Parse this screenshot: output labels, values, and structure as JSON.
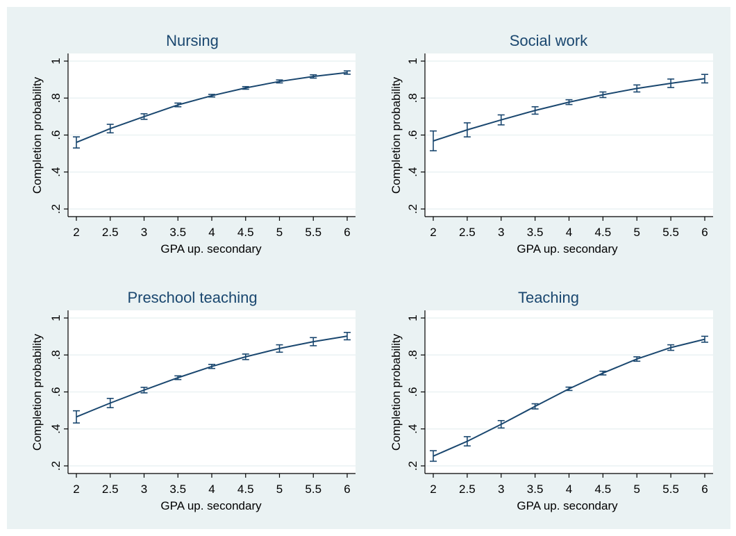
{
  "colors": {
    "background": "#ffffff",
    "figure_fill": "#eaf2f3",
    "plot_fill": "#ffffff",
    "gridline": "#eaf2f3",
    "series": "#1a476f"
  },
  "chart_data": [
    {
      "type": "line",
      "title": "Nursing",
      "xlabel": "GPA up. secondary",
      "ylabel": "Completion probability",
      "xlim": [
        2,
        6
      ],
      "ylim": [
        0.2,
        1
      ],
      "x_ticks": [
        2,
        2.5,
        3,
        3.5,
        4,
        4.5,
        5,
        5.5,
        6
      ],
      "x_tick_labels": [
        "2",
        "2.5",
        "3",
        "3.5",
        "4",
        "4.5",
        "5",
        "5.5",
        "6"
      ],
      "y_ticks": [
        0.2,
        0.4,
        0.6,
        0.8,
        1
      ],
      "y_tick_labels": [
        ".2",
        ".4",
        ".6",
        ".8",
        "1"
      ],
      "grid": true,
      "x": [
        2,
        2.5,
        3,
        3.5,
        4,
        4.5,
        5,
        5.5,
        6
      ],
      "y": [
        0.56,
        0.635,
        0.7,
        0.763,
        0.813,
        0.855,
        0.89,
        0.917,
        0.938
      ],
      "y_lower": [
        0.53,
        0.612,
        0.685,
        0.753,
        0.806,
        0.848,
        0.882,
        0.908,
        0.929
      ],
      "y_upper": [
        0.59,
        0.658,
        0.715,
        0.773,
        0.82,
        0.862,
        0.898,
        0.926,
        0.947
      ]
    },
    {
      "type": "line",
      "title": "Social work",
      "xlabel": "GPA up. secondary",
      "ylabel": "Completion probability",
      "xlim": [
        2,
        6
      ],
      "ylim": [
        0.2,
        1
      ],
      "x_ticks": [
        2,
        2.5,
        3,
        3.5,
        4,
        4.5,
        5,
        5.5,
        6
      ],
      "x_tick_labels": [
        "2",
        "2.5",
        "3",
        "3.5",
        "4",
        "4.5",
        "5",
        "5.5",
        "6"
      ],
      "y_ticks": [
        0.2,
        0.4,
        0.6,
        0.8,
        1
      ],
      "y_tick_labels": [
        ".2",
        ".4",
        ".6",
        ".8",
        "1"
      ],
      "grid": true,
      "x": [
        2,
        2.5,
        3,
        3.5,
        4,
        4.5,
        5,
        5.5,
        6
      ],
      "y": [
        0.568,
        0.628,
        0.682,
        0.733,
        0.778,
        0.818,
        0.852,
        0.88,
        0.905
      ],
      "y_lower": [
        0.515,
        0.59,
        0.655,
        0.713,
        0.765,
        0.803,
        0.833,
        0.857,
        0.882
      ],
      "y_upper": [
        0.622,
        0.666,
        0.709,
        0.753,
        0.791,
        0.833,
        0.871,
        0.903,
        0.928
      ]
    },
    {
      "type": "line",
      "title": "Preschool teaching",
      "xlabel": "GPA up. secondary",
      "ylabel": "Completion probability",
      "xlim": [
        2,
        6
      ],
      "ylim": [
        0.2,
        1
      ],
      "x_ticks": [
        2,
        2.5,
        3,
        3.5,
        4,
        4.5,
        5,
        5.5,
        6
      ],
      "x_tick_labels": [
        "2",
        "2.5",
        "3",
        "3.5",
        "4",
        "4.5",
        "5",
        "5.5",
        "6"
      ],
      "y_ticks": [
        0.2,
        0.4,
        0.6,
        0.8,
        1
      ],
      "y_tick_labels": [
        ".2",
        ".4",
        ".6",
        ".8",
        "1"
      ],
      "grid": true,
      "x": [
        2,
        2.5,
        3,
        3.5,
        4,
        4.5,
        5,
        5.5,
        6
      ],
      "y": [
        0.465,
        0.54,
        0.61,
        0.677,
        0.738,
        0.79,
        0.835,
        0.872,
        0.902
      ],
      "y_lower": [
        0.432,
        0.515,
        0.595,
        0.667,
        0.727,
        0.775,
        0.815,
        0.85,
        0.882
      ],
      "y_upper": [
        0.498,
        0.565,
        0.625,
        0.687,
        0.749,
        0.805,
        0.855,
        0.894,
        0.922
      ]
    },
    {
      "type": "line",
      "title": "Teaching",
      "xlabel": "GPA up. secondary",
      "ylabel": "Completion probability",
      "xlim": [
        2,
        6
      ],
      "ylim": [
        0.2,
        1
      ],
      "x_ticks": [
        2,
        2.5,
        3,
        3.5,
        4,
        4.5,
        5,
        5.5,
        6
      ],
      "x_tick_labels": [
        "2",
        "2.5",
        "3",
        "3.5",
        "4",
        "4.5",
        "5",
        "5.5",
        "6"
      ],
      "y_ticks": [
        0.2,
        0.4,
        0.6,
        0.8,
        1
      ],
      "y_tick_labels": [
        ".2",
        ".4",
        ".6",
        ".8",
        "1"
      ],
      "grid": true,
      "x": [
        2,
        2.5,
        3,
        3.5,
        4,
        4.5,
        5,
        5.5,
        6
      ],
      "y": [
        0.253,
        0.333,
        0.425,
        0.522,
        0.617,
        0.702,
        0.778,
        0.84,
        0.885
      ],
      "y_lower": [
        0.225,
        0.308,
        0.405,
        0.508,
        0.608,
        0.692,
        0.766,
        0.825,
        0.869
      ],
      "y_upper": [
        0.282,
        0.358,
        0.445,
        0.536,
        0.626,
        0.712,
        0.79,
        0.855,
        0.901
      ]
    }
  ]
}
